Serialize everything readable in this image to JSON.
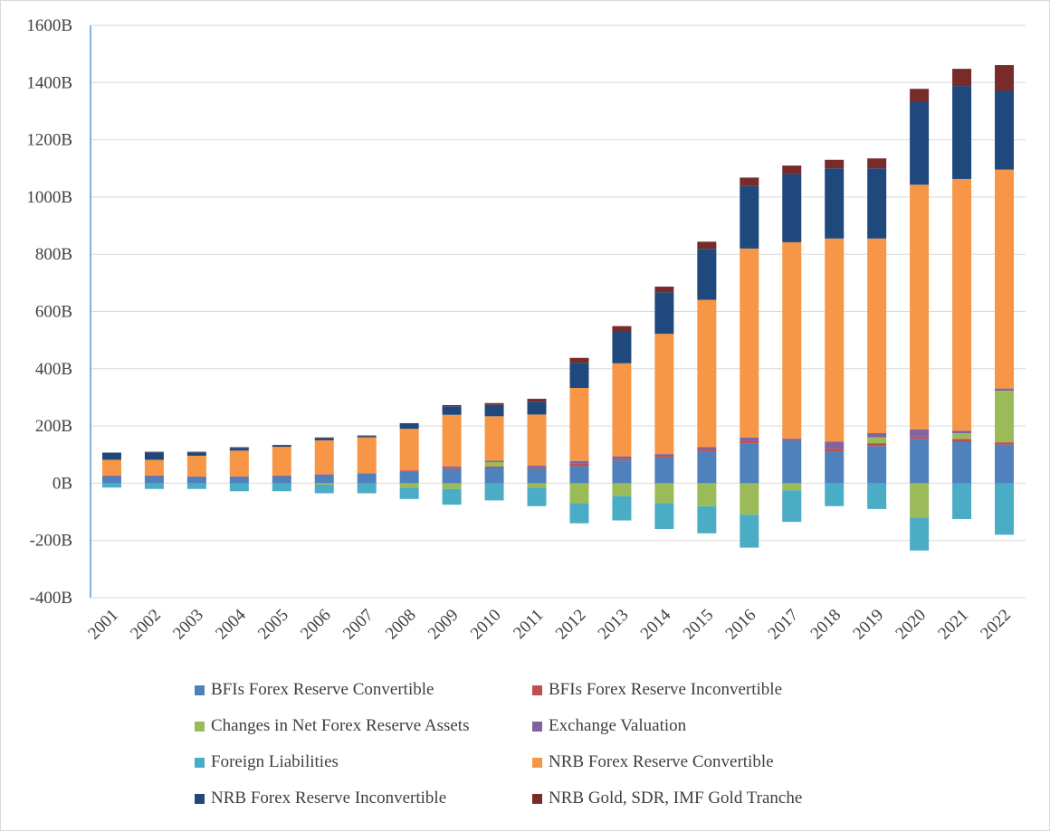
{
  "chart_data": {
    "type": "bar",
    "stacked": true,
    "categories": [
      "2001",
      "2002",
      "2003",
      "2004",
      "2005",
      "2006",
      "2007",
      "2008",
      "2009",
      "2010",
      "2011",
      "2012",
      "2013",
      "2014",
      "2015",
      "2016",
      "2017",
      "2018",
      "2019",
      "2020",
      "2021",
      "2022"
    ],
    "ylim": [
      -400,
      1600
    ],
    "yticks": [
      -400,
      -200,
      0,
      200,
      400,
      600,
      800,
      1000,
      1200,
      1400,
      1600
    ],
    "ytick_labels": [
      "-400B",
      "-200B",
      "0B",
      "200B",
      "400B",
      "600B",
      "800B",
      "1000B",
      "1200B",
      "1400B",
      "1600B"
    ],
    "grid": true,
    "legend_position": "bottom",
    "series": [
      {
        "name": "BFIs Forex Reserve Convertible",
        "color": "#4f81bd",
        "values": [
          25,
          25,
          22,
          22,
          25,
          30,
          33,
          42,
          50,
          55,
          52,
          60,
          80,
          90,
          110,
          140,
          150,
          110,
          130,
          155,
          145,
          135
        ]
      },
      {
        "name": "BFIs Forex Reserve Inconvertible",
        "color": "#c0504d",
        "values": [
          2,
          2,
          2,
          2,
          2,
          2,
          2,
          3,
          4,
          4,
          5,
          8,
          6,
          6,
          8,
          8,
          5,
          10,
          10,
          8,
          10,
          8
        ]
      },
      {
        "name": "Changes in Net Forex Reserve Assets",
        "color": "#9bbb59",
        "values": [
          0,
          0,
          0,
          0,
          0,
          -5,
          0,
          -15,
          -20,
          15,
          -15,
          -70,
          -45,
          -70,
          -80,
          -110,
          -25,
          0,
          20,
          -120,
          20,
          180
        ]
      },
      {
        "name": "Exchange Valuation",
        "color": "#8064a2",
        "values": [
          0,
          0,
          0,
          0,
          0,
          0,
          0,
          0,
          5,
          5,
          5,
          10,
          8,
          6,
          8,
          12,
          2,
          25,
          15,
          25,
          8,
          8
        ]
      },
      {
        "name": "Foreign Liabilities",
        "color": "#4bacc6",
        "values": [
          -15,
          -20,
          -20,
          -28,
          -28,
          -30,
          -35,
          -40,
          -55,
          -60,
          -65,
          -70,
          -85,
          -90,
          -95,
          -115,
          -110,
          -80,
          -90,
          -115,
          -125,
          -180
        ]
      },
      {
        "name": "NRB Forex Reserve Convertible",
        "color": "#f79646",
        "values": [
          55,
          55,
          72,
          90,
          100,
          118,
          125,
          145,
          180,
          155,
          178,
          255,
          325,
          420,
          515,
          660,
          685,
          710,
          680,
          855,
          880,
          765
        ]
      },
      {
        "name": "NRB Forex Reserve Inconvertible",
        "color": "#1f497d",
        "values": [
          25,
          26,
          12,
          10,
          5,
          8,
          5,
          18,
          30,
          40,
          45,
          88,
          110,
          145,
          178,
          218,
          238,
          245,
          245,
          290,
          325,
          275
        ]
      },
      {
        "name": "NRB Gold, SDR, IMF Gold Tranche",
        "color": "#772c2a",
        "values": [
          0,
          2,
          2,
          2,
          2,
          2,
          2,
          2,
          4,
          6,
          10,
          17,
          20,
          20,
          25,
          30,
          30,
          30,
          35,
          45,
          60,
          90
        ]
      }
    ]
  }
}
